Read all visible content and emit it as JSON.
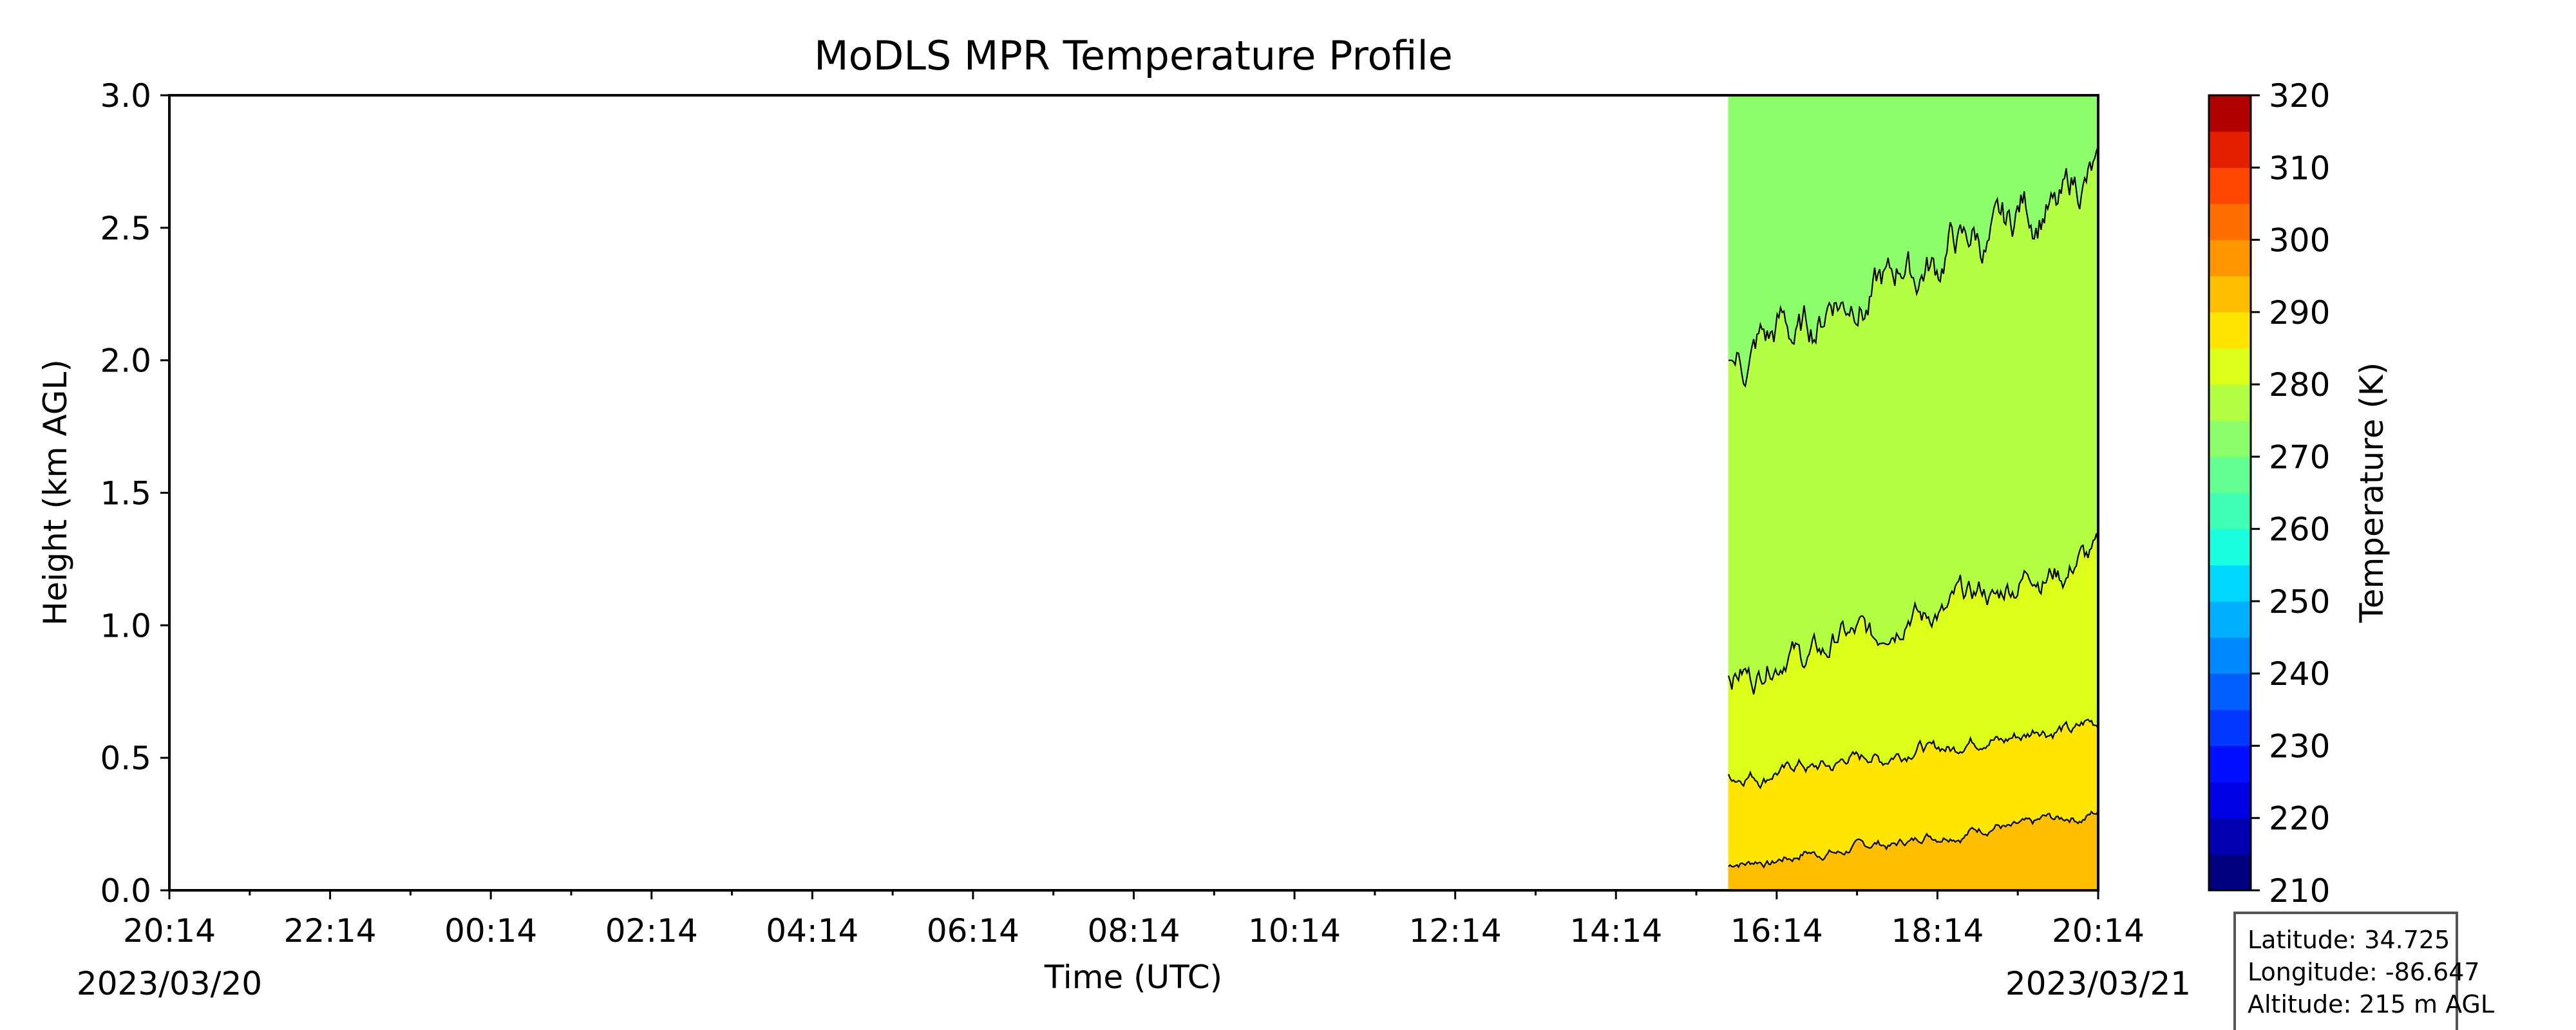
{
  "chart_data": {
    "type": "heatmap",
    "title": "MoDLS MPR Temperature Profile",
    "xlabel": "Time (UTC)",
    "ylabel": "Height (km AGL)",
    "x_tick_labels": [
      "20:14",
      "22:14",
      "00:14",
      "02:14",
      "04:14",
      "06:14",
      "08:14",
      "10:14",
      "12:14",
      "14:14",
      "16:14",
      "18:14",
      "20:14"
    ],
    "x_start_date": "2023/03/20",
    "x_end_date": "2023/03/21",
    "x_range_hours": [
      0,
      24
    ],
    "ylim": [
      0,
      3.0
    ],
    "y_tick_labels": [
      "0.0",
      "0.5",
      "1.0",
      "1.5",
      "2.0",
      "2.5",
      "3.0"
    ],
    "data_start_time": "15:38",
    "colorbar": {
      "label": "Temperature (K)",
      "range": [
        210,
        320
      ],
      "tick_labels": [
        "210",
        "220",
        "230",
        "240",
        "250",
        "260",
        "270",
        "280",
        "290",
        "300",
        "310",
        "320"
      ],
      "levels": [
        210,
        215,
        220,
        225,
        230,
        235,
        240,
        245,
        250,
        255,
        260,
        265,
        270,
        275,
        280,
        285,
        290,
        295,
        300,
        305,
        310,
        315,
        320
      ],
      "colors": [
        "#00007f",
        "#0000b2",
        "#0000e5",
        "#0010ff",
        "#0038ff",
        "#0060ff",
        "#0088ff",
        "#00b0ff",
        "#00d8ff",
        "#1affe0",
        "#40ffb6",
        "#63ff93",
        "#8cff6a",
        "#b3ff43",
        "#dbff1b",
        "#ffe500",
        "#ffbe00",
        "#ff9600",
        "#ff6e00",
        "#ff4600",
        "#e51e00",
        "#b20000",
        "#7f0000"
      ]
    },
    "contours": [
      {
        "level": 290,
        "band_below_color": "#ffbe00",
        "band_above_color": "#ffe500",
        "start_km": 0.09,
        "end_km": 0.29
      },
      {
        "level": 285,
        "band_below_color": "#ffe500",
        "band_above_color": "#dbff1b",
        "start_km": 0.42,
        "end_km": 0.63
      },
      {
        "level": 280,
        "band_below_color": "#dbff1b",
        "band_above_color": "#b3ff43",
        "start_km": 0.8,
        "end_km": 1.26
      },
      {
        "level": 275,
        "band_below_color": "#b3ff43",
        "band_above_color": "#8cff6a",
        "start_km": 2.0,
        "end_km": 2.68
      }
    ],
    "grid": false,
    "colorbar_location": "right"
  },
  "info_box": {
    "latitude": "Latitude: 34.725",
    "longitude": "Longitude: -86.647",
    "altitude": "Altitude: 215 m AGL"
  }
}
